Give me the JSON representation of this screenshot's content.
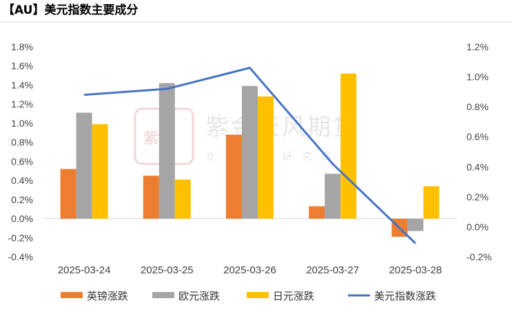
{
  "chart_data": {
    "type": "bar",
    "title": "【AU】美元指数主要成分",
    "categories": [
      "2025-03-24",
      "2025-03-25",
      "2025-03-26",
      "2025-03-27",
      "2025-03-28"
    ],
    "left_axis": {
      "ylim": [
        -0.004,
        0.018
      ],
      "step": 0.002,
      "ticks": [
        "-0.4%",
        "-0.2%",
        "0.0%",
        "0.2%",
        "0.4%",
        "0.6%",
        "0.8%",
        "1.0%",
        "1.2%",
        "1.4%",
        "1.6%",
        "1.8%"
      ]
    },
    "right_axis": {
      "ylim": [
        -0.002,
        0.012
      ],
      "step": 0.002,
      "ticks": [
        "-0.2%",
        "0.0%",
        "0.2%",
        "0.4%",
        "0.6%",
        "0.8%",
        "1.0%",
        "1.2%"
      ]
    },
    "series": [
      {
        "name": "英镑涨跌",
        "type": "bar",
        "axis": "left",
        "color": "#ED7D31",
        "values": [
          0.0052,
          0.0045,
          0.0088,
          0.0013,
          -0.0019
        ]
      },
      {
        "name": "欧元涨跌",
        "type": "bar",
        "axis": "left",
        "color": "#A5A5A5",
        "values": [
          0.0111,
          0.0142,
          0.0139,
          0.0047,
          -0.0013
        ]
      },
      {
        "name": "日元涨跌",
        "type": "bar",
        "axis": "left",
        "color": "#FFC000",
        "values": [
          0.0099,
          0.0041,
          0.0128,
          0.0152,
          0.0034
        ]
      },
      {
        "name": "美元指数涨跌",
        "type": "line",
        "axis": "right",
        "color": "#4472C4",
        "values": [
          0.0088,
          0.0092,
          0.0106,
          0.0042,
          -0.0011
        ]
      }
    ],
    "legend_position": "bottom"
  },
  "watermark": {
    "company": "紫金天风期货",
    "slogan": "立足产业研究驱动",
    "seal": "紫金"
  }
}
